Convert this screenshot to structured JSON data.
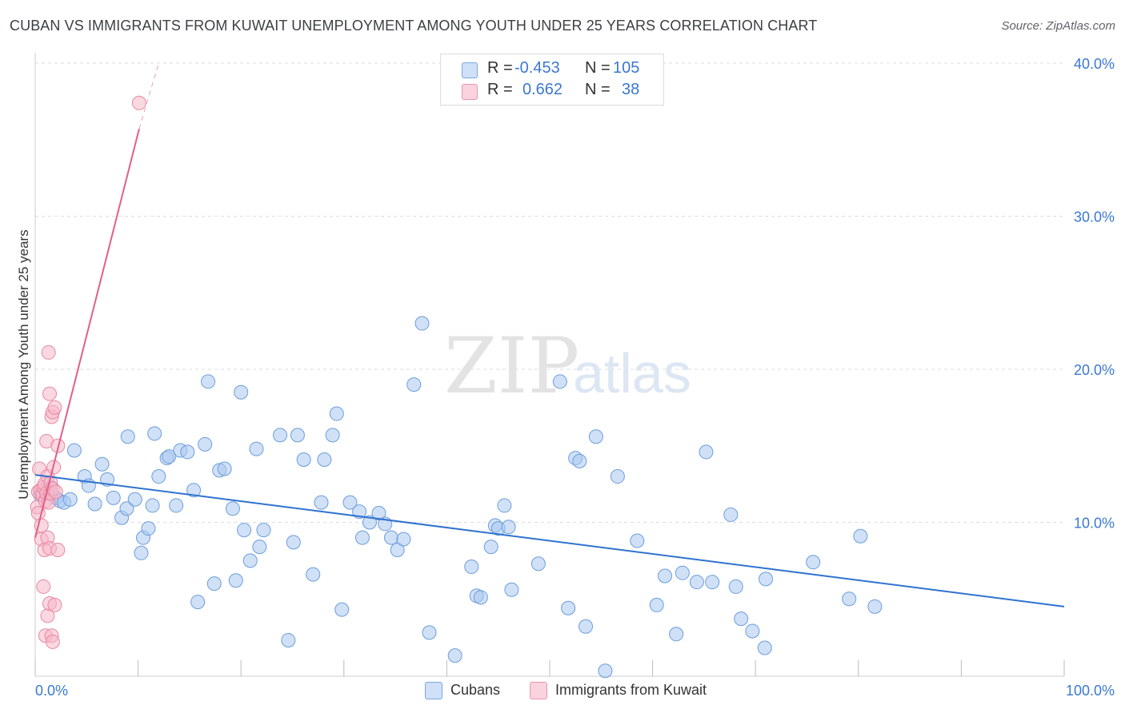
{
  "title": "CUBAN VS IMMIGRANTS FROM KUWAIT UNEMPLOYMENT AMONG YOUTH UNDER 25 YEARS CORRELATION CHART",
  "source": "Source: ZipAtlas.com",
  "watermark": {
    "zip": "ZIP",
    "atlas": "atlas"
  },
  "legend_top": {
    "series": [
      {
        "r_label": "R =",
        "r_value": "-0.453",
        "n_label": "N =",
        "n_value": "105",
        "color": "#aac8f0"
      },
      {
        "r_label": "R =",
        "r_value": "0.662",
        "n_label": "N =",
        "n_value": "38",
        "color": "#f6b8cb"
      }
    ]
  },
  "legend_bottom": {
    "cubans": "Cubans",
    "kuwait": "Immigrants from Kuwait"
  },
  "colors": {
    "blue_fill": "#aac8f0",
    "blue_stroke": "#6c9ddc",
    "blue_line": "#2f72cf",
    "pink_fill": "#f6b8cb",
    "pink_stroke": "#e8889f",
    "pink_line": "#e0608a",
    "axis_text": "#3a78d0",
    "grid": "#dcdcdc"
  },
  "chart_data": {
    "type": "scatter",
    "title": "CUBAN VS IMMIGRANTS FROM KUWAIT UNEMPLOYMENT AMONG YOUTH UNDER 25 YEARS CORRELATION CHART",
    "xlabel": "",
    "ylabel": "Unemployment Among Youth under 25 years",
    "xlim": [
      0,
      100
    ],
    "ylim": [
      0,
      40
    ],
    "x_tick_labels": [
      "0.0%",
      "100.0%"
    ],
    "y_ticks": [
      10,
      20,
      30,
      40
    ],
    "y_tick_labels": [
      "10.0%",
      "20.0%",
      "30.0%",
      "40.0%"
    ],
    "series": [
      {
        "name": "Cubans",
        "r": -0.453,
        "n": 105,
        "trend": {
          "x0": 0,
          "y0": 13.1,
          "x1": 100,
          "y1": 4.5
        },
        "points": [
          [
            0.5,
            11.8
          ],
          [
            1.0,
            12.1
          ],
          [
            1.2,
            11.9
          ],
          [
            1.5,
            12.3
          ],
          [
            2.0,
            11.6
          ],
          [
            2.4,
            11.4
          ],
          [
            2.8,
            11.3
          ],
          [
            3.4,
            11.5
          ],
          [
            3.8,
            14.7
          ],
          [
            4.8,
            13.0
          ],
          [
            5.2,
            12.4
          ],
          [
            5.8,
            11.2
          ],
          [
            6.5,
            13.8
          ],
          [
            7.0,
            12.8
          ],
          [
            7.6,
            11.6
          ],
          [
            8.4,
            10.3
          ],
          [
            8.9,
            10.9
          ],
          [
            9.0,
            15.6
          ],
          [
            9.7,
            11.5
          ],
          [
            10.3,
            8.0
          ],
          [
            10.5,
            9.0
          ],
          [
            11.0,
            9.6
          ],
          [
            11.4,
            11.1
          ],
          [
            11.6,
            15.8
          ],
          [
            12.0,
            13.0
          ],
          [
            12.8,
            14.2
          ],
          [
            13.0,
            14.3
          ],
          [
            13.7,
            11.1
          ],
          [
            14.1,
            14.7
          ],
          [
            14.8,
            14.6
          ],
          [
            15.4,
            12.1
          ],
          [
            15.8,
            4.8
          ],
          [
            16.5,
            15.1
          ],
          [
            16.8,
            19.2
          ],
          [
            17.4,
            6.0
          ],
          [
            17.9,
            13.4
          ],
          [
            18.4,
            13.5
          ],
          [
            19.2,
            10.9
          ],
          [
            19.5,
            6.2
          ],
          [
            20.0,
            18.5
          ],
          [
            20.3,
            9.5
          ],
          [
            20.9,
            7.5
          ],
          [
            21.5,
            14.8
          ],
          [
            21.8,
            8.4
          ],
          [
            22.2,
            9.5
          ],
          [
            23.8,
            15.7
          ],
          [
            24.6,
            2.3
          ],
          [
            25.1,
            8.7
          ],
          [
            25.5,
            15.7
          ],
          [
            26.1,
            14.1
          ],
          [
            27.0,
            6.6
          ],
          [
            27.8,
            11.3
          ],
          [
            28.1,
            14.1
          ],
          [
            28.9,
            15.7
          ],
          [
            29.3,
            17.1
          ],
          [
            29.8,
            4.3
          ],
          [
            30.6,
            11.3
          ],
          [
            31.5,
            10.7
          ],
          [
            31.8,
            9.0
          ],
          [
            32.5,
            10.0
          ],
          [
            33.4,
            10.6
          ],
          [
            34.0,
            9.9
          ],
          [
            34.6,
            9.0
          ],
          [
            35.2,
            8.2
          ],
          [
            35.8,
            8.9
          ],
          [
            36.8,
            19.0
          ],
          [
            37.6,
            23.0
          ],
          [
            38.3,
            2.8
          ],
          [
            40.8,
            1.3
          ],
          [
            42.4,
            7.1
          ],
          [
            42.9,
            5.2
          ],
          [
            43.3,
            5.1
          ],
          [
            44.3,
            8.4
          ],
          [
            44.7,
            9.8
          ],
          [
            45.0,
            9.6
          ],
          [
            45.6,
            11.1
          ],
          [
            46.0,
            9.7
          ],
          [
            46.3,
            5.6
          ],
          [
            48.9,
            7.3
          ],
          [
            51.0,
            19.2
          ],
          [
            51.8,
            4.4
          ],
          [
            52.5,
            14.2
          ],
          [
            52.9,
            14.0
          ],
          [
            53.5,
            3.2
          ],
          [
            54.5,
            15.6
          ],
          [
            55.4,
            0.3
          ],
          [
            56.6,
            13.0
          ],
          [
            58.5,
            8.8
          ],
          [
            60.4,
            4.6
          ],
          [
            61.2,
            6.5
          ],
          [
            62.3,
            2.7
          ],
          [
            62.9,
            6.7
          ],
          [
            64.3,
            6.1
          ],
          [
            65.2,
            14.6
          ],
          [
            65.8,
            6.1
          ],
          [
            67.6,
            10.5
          ],
          [
            68.1,
            5.8
          ],
          [
            68.6,
            3.7
          ],
          [
            69.7,
            2.9
          ],
          [
            70.9,
            1.8
          ],
          [
            71.0,
            6.3
          ],
          [
            75.6,
            7.4
          ],
          [
            79.1,
            5.0
          ],
          [
            80.2,
            9.1
          ],
          [
            81.6,
            4.5
          ]
        ]
      },
      {
        "name": "Immigrants from Kuwait",
        "r": 0.662,
        "n": 38,
        "trend": {
          "x0": 0,
          "y0": 9.0,
          "x1": 10.1,
          "y1": 35.7,
          "dashed_to": {
            "x": 12.0,
            "y": 40.0
          }
        },
        "points": [
          [
            0.2,
            11.0
          ],
          [
            0.3,
            12.0
          ],
          [
            0.3,
            10.6
          ],
          [
            0.4,
            13.5
          ],
          [
            0.5,
            12.1
          ],
          [
            0.6,
            9.8
          ],
          [
            0.6,
            8.9
          ],
          [
            0.7,
            11.8
          ],
          [
            0.8,
            12.3
          ],
          [
            0.8,
            5.8
          ],
          [
            0.9,
            12.5
          ],
          [
            0.9,
            8.2
          ],
          [
            1.0,
            2.6
          ],
          [
            1.0,
            11.4
          ],
          [
            1.1,
            11.9
          ],
          [
            1.1,
            15.3
          ],
          [
            1.2,
            13.0
          ],
          [
            1.2,
            3.9
          ],
          [
            1.2,
            9.0
          ],
          [
            1.3,
            11.3
          ],
          [
            1.3,
            21.1
          ],
          [
            1.4,
            8.3
          ],
          [
            1.4,
            18.4
          ],
          [
            1.4,
            4.7
          ],
          [
            1.5,
            12.6
          ],
          [
            1.5,
            11.9
          ],
          [
            1.6,
            2.6
          ],
          [
            1.6,
            16.9
          ],
          [
            1.7,
            12.2
          ],
          [
            1.7,
            2.2
          ],
          [
            1.7,
            17.2
          ],
          [
            1.8,
            13.6
          ],
          [
            1.9,
            17.5
          ],
          [
            1.9,
            4.6
          ],
          [
            2.0,
            12.0
          ],
          [
            2.2,
            15.0
          ],
          [
            2.2,
            8.2
          ],
          [
            10.1,
            37.4
          ]
        ]
      }
    ]
  }
}
